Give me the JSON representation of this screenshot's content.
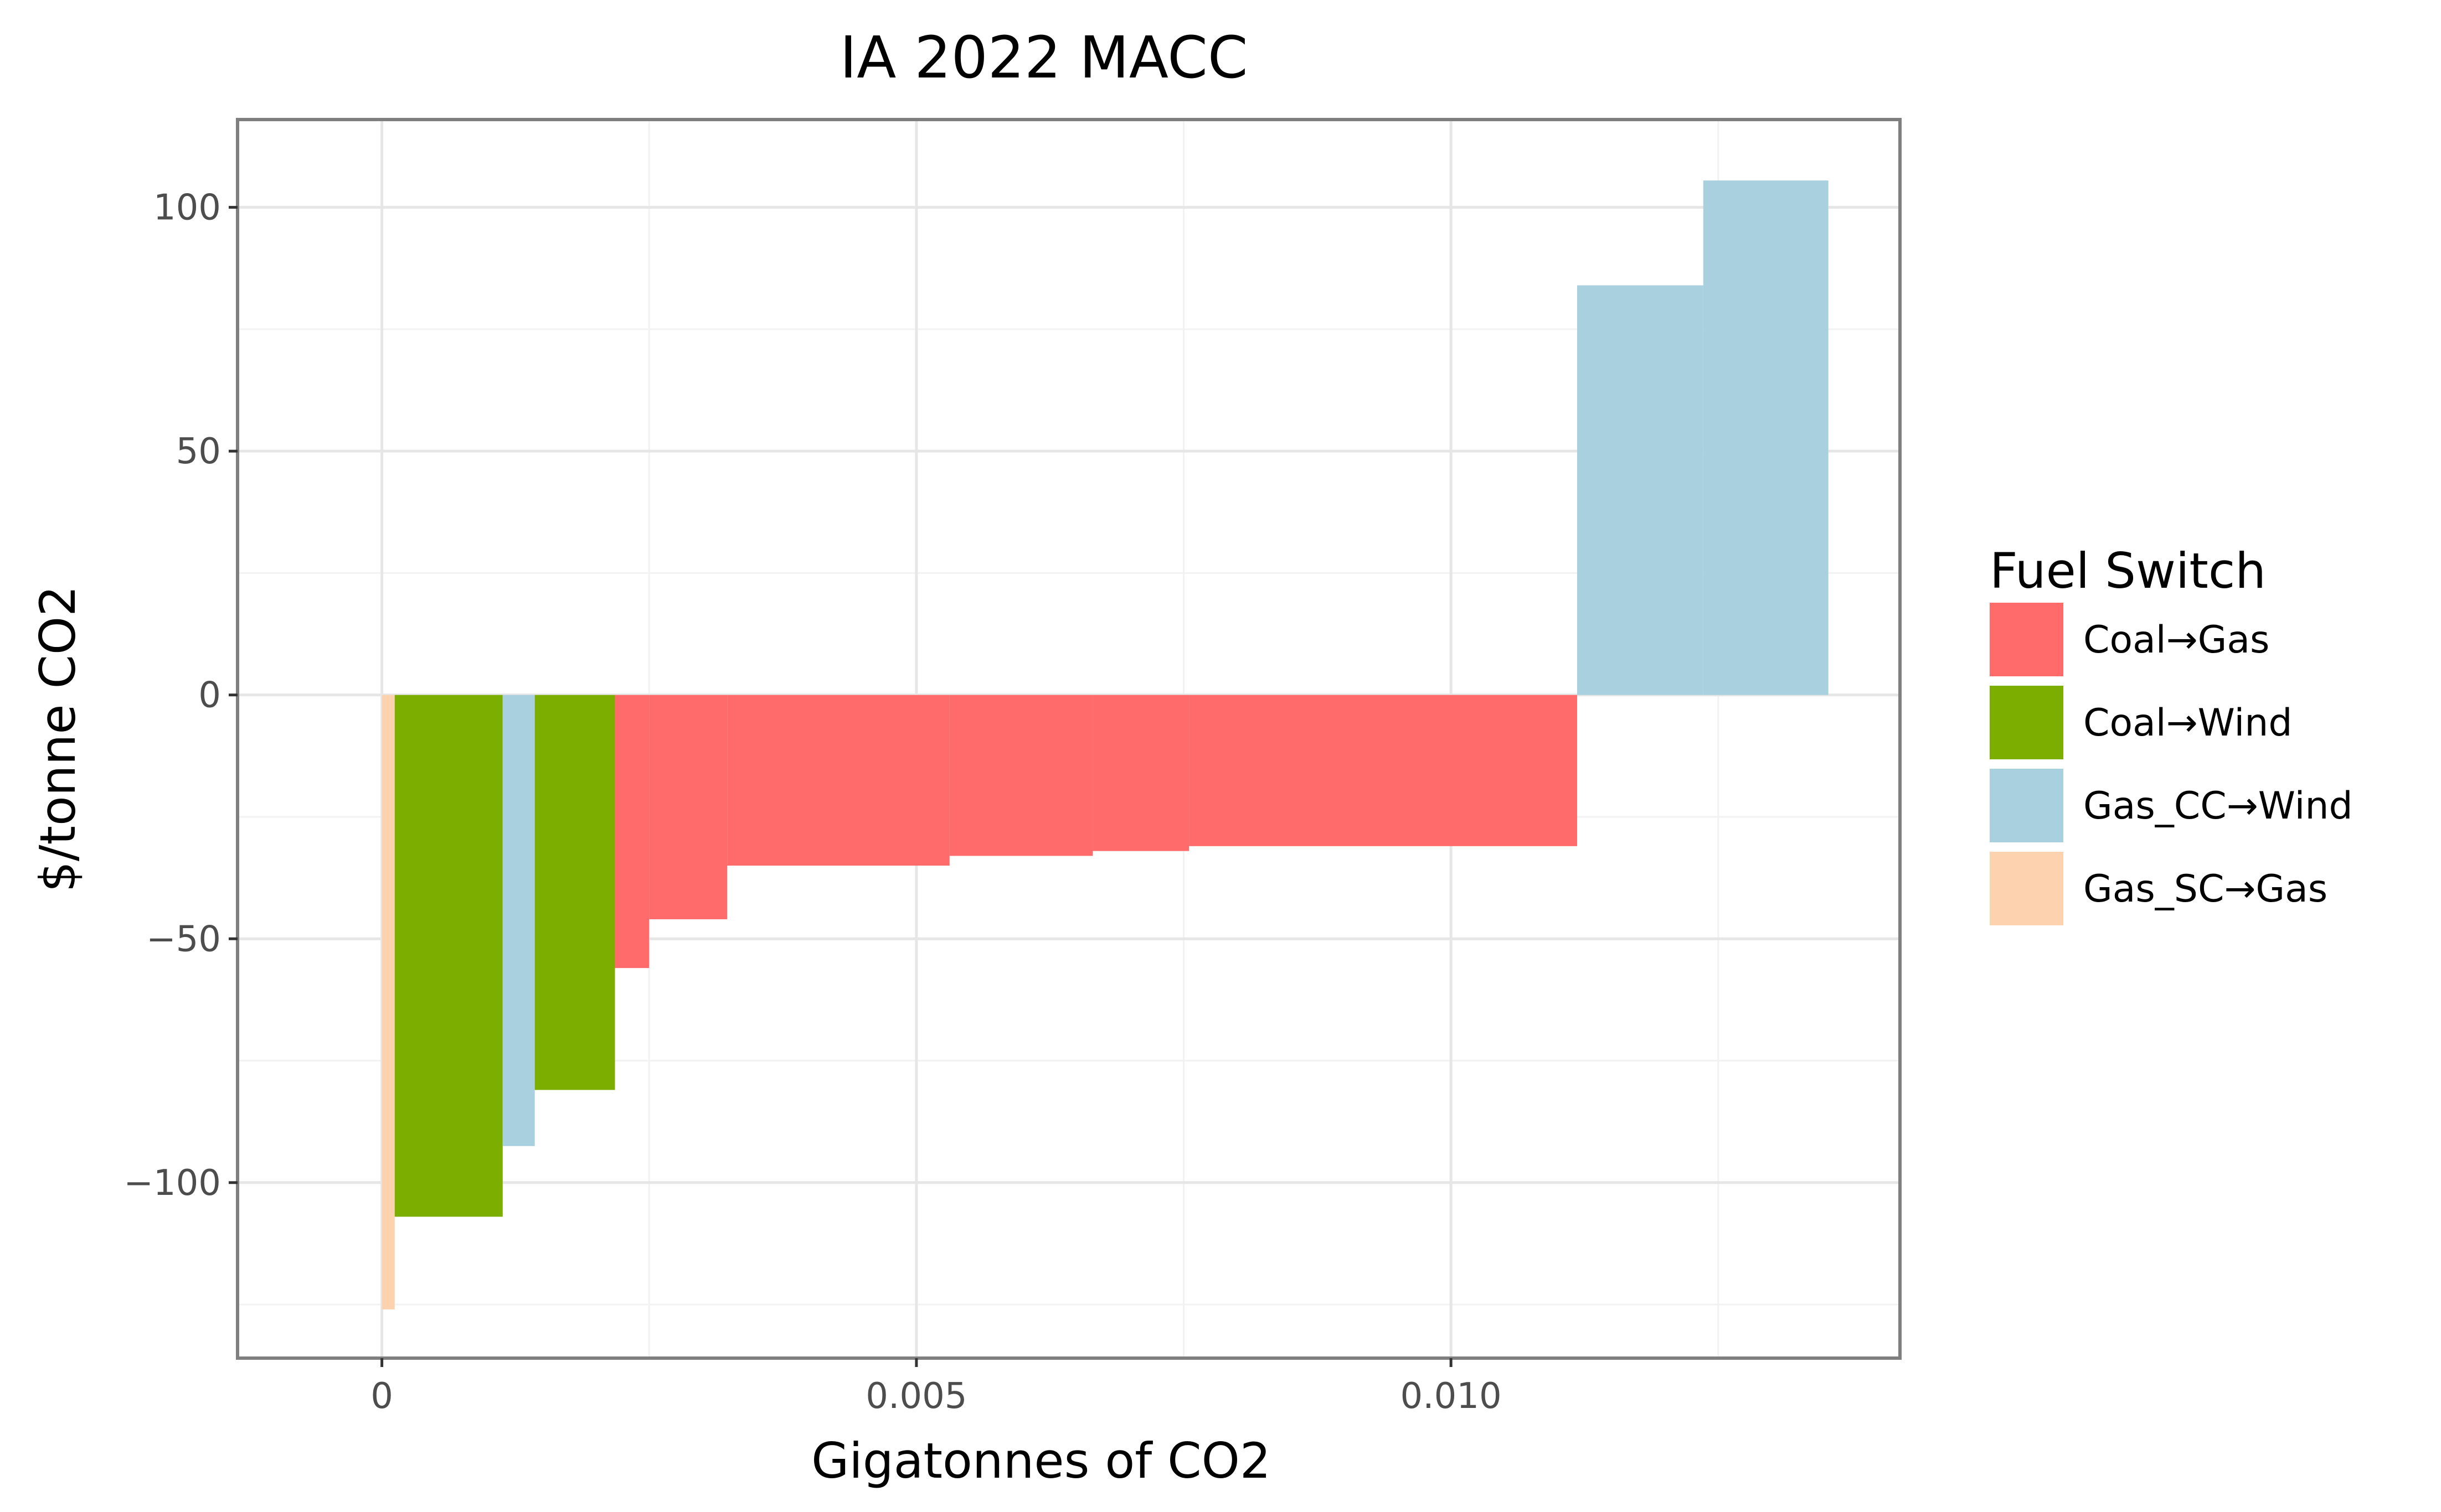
{
  "chart_data": {
    "type": "bar",
    "title": "IA 2022 MACC",
    "xlabel": "Gigatonnes of CO2",
    "ylabel": "$/tonne CO2",
    "xlim": [
      -0.00135,
      0.0142
    ],
    "ylim": [
      -136,
      118
    ],
    "grid": true,
    "x_ticks": [
      {
        "value": 0,
        "label": "0"
      },
      {
        "value": 0.005,
        "label": "0.005"
      },
      {
        "value": 0.01,
        "label": "0.010"
      }
    ],
    "y_ticks": [
      {
        "value": 100,
        "label": "100"
      },
      {
        "value": 50,
        "label": "50"
      },
      {
        "value": 0,
        "label": "0"
      },
      {
        "value": -50,
        "label": "−50"
      },
      {
        "value": -100,
        "label": "−100"
      }
    ],
    "legend": {
      "title": "Fuel Switch",
      "position": "right",
      "entries": [
        {
          "name": "Coal→Gas",
          "color": "#ff6a6a"
        },
        {
          "name": "Coal→Wind",
          "color": "#7cae00"
        },
        {
          "name": "Gas_CC→Wind",
          "color": "#a8d0de"
        },
        {
          "name": "Gas_SC→Gas",
          "color": "#fdd2ae"
        }
      ]
    },
    "series": [
      {
        "category": "Gas_SC→Gas",
        "x_start": 0.0,
        "x_end": 0.00012,
        "value": -126
      },
      {
        "category": "Coal→Wind",
        "x_start": 0.00012,
        "x_end": 0.00113,
        "value": -107
      },
      {
        "category": "Gas_CC→Wind",
        "x_start": 0.00113,
        "x_end": 0.00143,
        "value": -92.5
      },
      {
        "category": "Coal→Wind",
        "x_start": 0.00143,
        "x_end": 0.00218,
        "value": -81
      },
      {
        "category": "Coal→Gas",
        "x_start": 0.00218,
        "x_end": 0.0025,
        "value": -56
      },
      {
        "category": "Coal→Gas",
        "x_start": 0.0025,
        "x_end": 0.00323,
        "value": -46
      },
      {
        "category": "Coal→Gas",
        "x_start": 0.00323,
        "x_end": 0.00531,
        "value": -35
      },
      {
        "category": "Coal→Gas",
        "x_start": 0.00531,
        "x_end": 0.00665,
        "value": -33
      },
      {
        "category": "Coal→Gas",
        "x_start": 0.00665,
        "x_end": 0.00755,
        "value": -32
      },
      {
        "category": "Coal→Gas",
        "x_start": 0.00755,
        "x_end": 0.01118,
        "value": -31
      },
      {
        "category": "Gas_CC→Wind",
        "x_start": 0.01118,
        "x_end": 0.01236,
        "value": 84
      },
      {
        "category": "Gas_CC→Wind",
        "x_start": 0.01236,
        "x_end": 0.01353,
        "value": 105.5
      }
    ]
  }
}
